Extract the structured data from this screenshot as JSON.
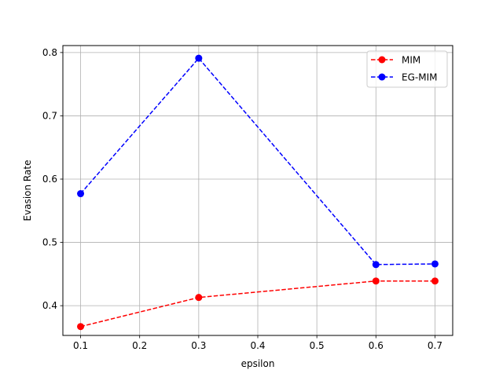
{
  "chart_data": {
    "type": "line",
    "title": "",
    "xlabel": "epsilon",
    "ylabel": "Evasion Rate",
    "xlim": [
      0.07,
      0.73
    ],
    "ylim": [
      0.353,
      0.811
    ],
    "xticks": [
      0.1,
      0.2,
      0.3,
      0.4,
      0.5,
      0.6,
      0.7
    ],
    "xtick_labels": [
      "0.1",
      "0.2",
      "0.3",
      "0.4",
      "0.5",
      "0.6",
      "0.7"
    ],
    "yticks": [
      0.4,
      0.5,
      0.6,
      0.7,
      0.8
    ],
    "ytick_labels": [
      "0.4",
      "0.5",
      "0.6",
      "0.7",
      "0.8"
    ],
    "grid": true,
    "legend_position": "top-right",
    "x": [
      0.1,
      0.3,
      0.6,
      0.7
    ],
    "series": [
      {
        "name": "MIM",
        "color": "#ff0000",
        "marker_color": "#ff0000",
        "linestyle": "dashed",
        "marker": "circle",
        "values": [
          0.367,
          0.413,
          0.439,
          0.439
        ]
      },
      {
        "name": "EG-MIM",
        "color": "#0000ff",
        "marker_color": "#0000ff",
        "linestyle": "dashed",
        "marker": "circle",
        "values": [
          0.577,
          0.791,
          0.465,
          0.466
        ]
      }
    ]
  }
}
